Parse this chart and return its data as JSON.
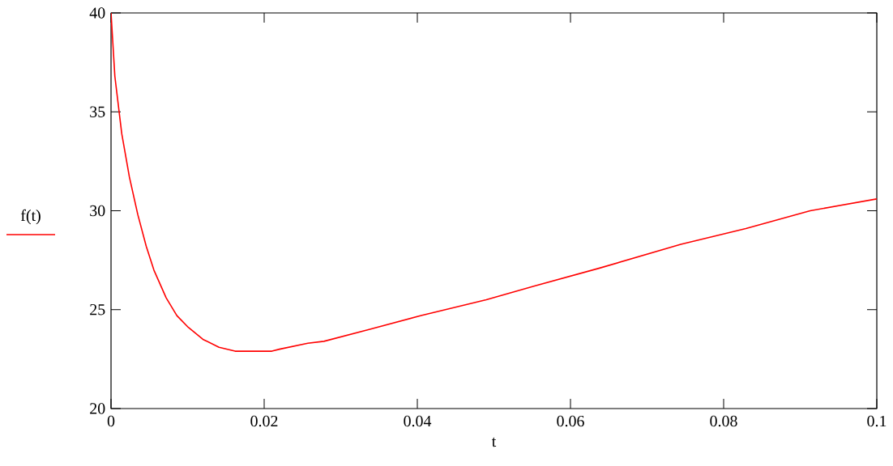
{
  "chart_data": {
    "type": "line",
    "xlabel": "t",
    "legend": "left",
    "grid": false,
    "marker": "none",
    "line_style": "solid",
    "xlim": [
      0,
      0.1
    ],
    "ylim": [
      20,
      40
    ],
    "xticks": [
      0,
      0.02,
      0.04,
      0.06,
      0.08,
      0.1
    ],
    "yticks": [
      20,
      25,
      30,
      35,
      40
    ],
    "series": [
      {
        "name": "f(t)",
        "color": "#ff0000",
        "x": [
          0,
          0.0005,
          0.0014,
          0.0024,
          0.0035,
          0.0046,
          0.0056,
          0.0072,
          0.0086,
          0.0101,
          0.012,
          0.0141,
          0.0162,
          0.021,
          0.022,
          0.0257,
          0.0278,
          0.0337,
          0.0405,
          0.049,
          0.0553,
          0.0638,
          0.0744,
          0.0829,
          0.0913,
          0.1
        ],
        "values": [
          40,
          36.8,
          33.9,
          31.7,
          29.8,
          28.2,
          27.0,
          25.6,
          24.7,
          24.1,
          23.5,
          23.1,
          22.9,
          22.9,
          23.0,
          23.3,
          23.4,
          24.0,
          24.7,
          25.5,
          26.2,
          27.1,
          28.3,
          29.1,
          30.0,
          30.6
        ]
      }
    ]
  }
}
